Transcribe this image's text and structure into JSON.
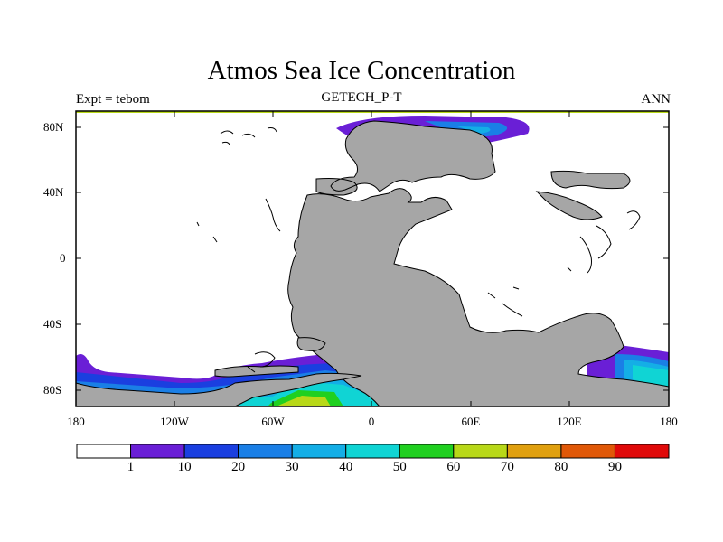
{
  "title": "Atmos Sea Ice Concentration",
  "left_label": "Expt = tebom",
  "center_label": "GETECH_P-T",
  "right_label": "ANN",
  "lat_ticks": [
    "80N",
    "40N",
    "0",
    "40S",
    "80S"
  ],
  "lon_ticks": [
    "180",
    "120W",
    "60W",
    "0",
    "60E",
    "120E",
    "180"
  ],
  "colorbar": {
    "labels": [
      "1",
      "10",
      "20",
      "30",
      "40",
      "50",
      "60",
      "70",
      "80",
      "90"
    ],
    "colors": [
      "#ffffff",
      "#6a1fd6",
      "#1a3fe0",
      "#1a7fe6",
      "#14aee6",
      "#10d4d4",
      "#20d020",
      "#b8d818",
      "#e0a010",
      "#e05808",
      "#e00a0a"
    ]
  },
  "colors": {
    "land": "#a6a6a6",
    "coast": "#000000"
  }
}
